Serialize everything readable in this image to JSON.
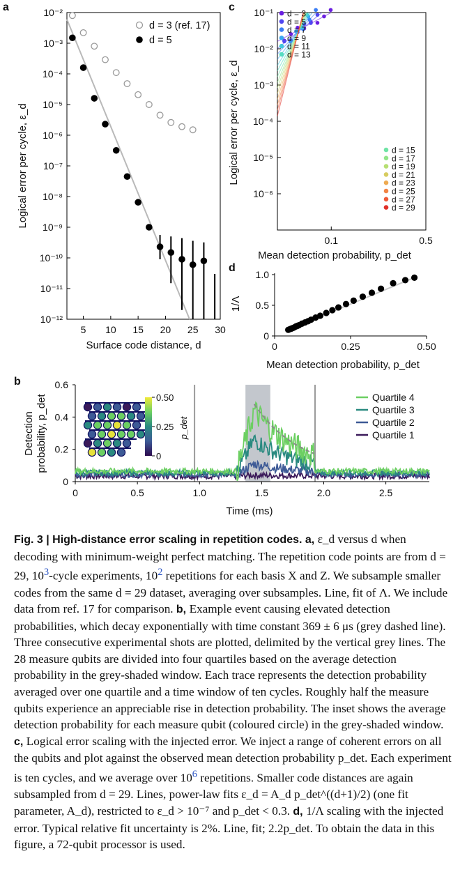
{
  "panels": {
    "a": {
      "letter": "a",
      "ylabel": "Logical error per cycle, ε_d",
      "xlabel": "Surface code distance, d",
      "yticks": [
        "10⁻²",
        "10⁻³",
        "10⁻⁴",
        "10⁻⁵",
        "10⁻⁶",
        "10⁻⁷",
        "10⁻⁸",
        "10⁻⁹",
        "10⁻¹⁰",
        "10⁻¹¹",
        "10⁻¹²"
      ],
      "xticks": [
        "5",
        "10",
        "15",
        "20",
        "25",
        "30"
      ],
      "legend": [
        "d = 3 (ref. 17)",
        "d = 5"
      ]
    },
    "b": {
      "letter": "b",
      "ylabel_line1": "Detection",
      "ylabel_line2": "probability, p_det",
      "xlabel": "Time (ms)",
      "yticks": [
        "0",
        "0.2",
        "0.4",
        "0.6"
      ],
      "xticks": [
        "0",
        "0.5",
        "1.0",
        "1.5",
        "2.0",
        "2.5"
      ],
      "colorbar_ticks": [
        "0.50",
        "0.25",
        "0"
      ],
      "colorbar_label": "p_det",
      "legend": [
        "Quartile 4",
        "Quartile 3",
        "Quartile 2",
        "Quartile 1"
      ]
    },
    "c": {
      "letter": "c",
      "ylabel": "Logical error per cycle, ε_d",
      "xlabel": "Mean detection probability, p_det",
      "yticks": [
        "10⁻¹",
        "10⁻²",
        "10⁻³",
        "10⁻⁴",
        "10⁻⁵",
        "10⁻⁶"
      ],
      "xticks": [
        "0.1",
        "0.5"
      ],
      "legend_left": [
        "d = 3",
        "d = 5",
        "d = 7",
        "d = 9",
        "d = 11",
        "d = 13"
      ],
      "legend_right": [
        "d = 15",
        "d = 17",
        "d = 19",
        "d = 21",
        "d = 23",
        "d = 25",
        "d = 27",
        "d = 29"
      ]
    },
    "d": {
      "letter": "d",
      "ylabel": "1/Λ",
      "xlabel": "Mean detection probability, p_det",
      "yticks": [
        "0",
        "0.5",
        "1.0"
      ],
      "xticks": [
        "0",
        "0.25",
        "0.50"
      ]
    }
  },
  "chart_data": [
    {
      "panel": "a",
      "type": "scatter",
      "log_y": true,
      "xlabel": "Surface code distance, d",
      "ylabel": "Logical error per cycle, ε_d",
      "xlim": [
        2,
        30
      ],
      "ylim": [
        1e-12,
        0.01
      ],
      "series": [
        {
          "name": "d = 3 (ref. 17)",
          "marker": "open",
          "x": [
            3,
            5,
            7,
            9,
            11,
            13,
            15,
            17,
            19,
            21,
            23,
            25
          ],
          "y": [
            0.008,
            0.0022,
            0.0008,
            0.00029,
            0.00011,
            4.8e-05,
            2.1e-05,
            1e-05,
            4.5e-06,
            2.6e-06,
            1.9e-06,
            1.5e-06
          ]
        },
        {
          "name": "d = 5",
          "marker": "filled",
          "x": [
            3,
            5,
            7,
            9,
            11,
            13,
            15,
            17,
            19,
            21,
            23,
            25,
            27,
            29
          ],
          "y": [
            0.0015,
            0.00016,
            1.6e-05,
            2.3e-06,
            3.2e-07,
            4.5e-08,
            6.5e-09,
            1e-09,
            2.3e-10,
            1.5e-10,
            9e-11,
            6e-11,
            8e-11,
            null
          ],
          "yerr_low": [
            null,
            null,
            null,
            null,
            null,
            null,
            null,
            null,
            1.4e-10,
            1.35e-10,
            8.8e-11,
            5.9e-11,
            7.9e-11,
            null
          ],
          "yerr_high": [
            null,
            null,
            null,
            null,
            null,
            null,
            null,
            null,
            3.3e-10,
            3.5e-10,
            3.5e-10,
            3e-10,
            2.4e-10,
            3e-11
          ]
        }
      ],
      "fit_line": {
        "x": [
          2.0,
          24.4
        ],
        "y": [
          0.006,
          1e-12
        ]
      }
    },
    {
      "panel": "b",
      "type": "line",
      "xlabel": "Time (ms)",
      "ylabel": "Detection probability, p_det",
      "xlim": [
        0,
        2.85
      ],
      "ylim": [
        0,
        0.6
      ],
      "shaded_window": [
        1.37,
        1.57
      ],
      "shot_boundaries": [
        0.96,
        1.93
      ],
      "decay_fit": {
        "t0": 1.44,
        "p0": 0.48,
        "tau_ms": 0.369,
        "t_end": 1.92,
        "floor": 0.06
      },
      "series": [
        {
          "name": "Quartile 4",
          "color": "#6ccf62",
          "base": 0.065,
          "peak": 0.44
        },
        {
          "name": "Quartile 3",
          "color": "#2a8a80",
          "base": 0.055,
          "peak": 0.26
        },
        {
          "name": "Quartile 2",
          "color": "#3d5a96",
          "base": 0.045,
          "peak": 0.11
        },
        {
          "name": "Quartile 1",
          "color": "#3b1a5a",
          "base": 0.035,
          "peak": 0.04
        }
      ]
    },
    {
      "panel": "c",
      "type": "scatter",
      "log_x": true,
      "log_y": true,
      "xlabel": "Mean detection probability, p_det",
      "ylabel": "Logical error per cycle, ε_d",
      "xlim": [
        0.04,
        0.5
      ],
      "ylim": [
        1e-07,
        0.1
      ],
      "model": "ε_d = A_d · p^((d+1)/2)",
      "series": [
        {
          "name": "d = 3",
          "color": "#6a1fe0",
          "A": 10.0,
          "pmin": 0.045
        },
        {
          "name": "d = 5",
          "color": "#5046f0",
          "A": 160,
          "pmin": 0.045
        },
        {
          "name": "d = 7",
          "color": "#3a7df5",
          "A": 2800,
          "pmin": 0.05
        },
        {
          "name": "d = 9",
          "color": "#3aa6f0",
          "A": 50000,
          "pmin": 0.055
        },
        {
          "name": "d = 11",
          "color": "#40c8dc",
          "A": 850000.0,
          "pmin": 0.06
        },
        {
          "name": "d = 13",
          "color": "#55dcc0",
          "A": 15000000.0,
          "pmin": 0.07
        },
        {
          "name": "d = 15",
          "color": "#70e4a6",
          "A": 260000000.0,
          "pmin": 0.08
        },
        {
          "name": "d = 17",
          "color": "#92e58a",
          "A": 4500000000.0,
          "pmin": 0.09
        },
        {
          "name": "d = 19",
          "color": "#b6df72",
          "A": 80000000000.0,
          "pmin": 0.1
        },
        {
          "name": "d = 21",
          "color": "#d7cc60",
          "A": 1400000000000.0,
          "pmin": 0.11
        },
        {
          "name": "d = 23",
          "color": "#eeab52",
          "A": 24000000000000.0,
          "pmin": 0.12
        },
        {
          "name": "d = 25",
          "color": "#f38444",
          "A": 420000000000000.0,
          "pmin": 0.13
        },
        {
          "name": "d = 27",
          "color": "#ef5a38",
          "A": 7500000000000000.0,
          "pmin": 0.14
        },
        {
          "name": "d = 29",
          "color": "#e03028",
          "A": 1.3e+17,
          "pmin": 0.15
        }
      ]
    },
    {
      "panel": "d",
      "type": "scatter",
      "xlabel": "Mean detection probability, p_det",
      "ylabel": "1/Λ",
      "xlim": [
        0,
        0.5
      ],
      "ylim": [
        0,
        1.0
      ],
      "x": [
        0.045,
        0.05,
        0.055,
        0.06,
        0.065,
        0.07,
        0.075,
        0.08,
        0.09,
        0.1,
        0.11,
        0.12,
        0.135,
        0.15,
        0.17,
        0.19,
        0.21,
        0.235,
        0.26,
        0.29,
        0.32,
        0.35,
        0.39,
        0.43,
        0.46
      ],
      "y": [
        0.1,
        0.11,
        0.12,
        0.13,
        0.14,
        0.155,
        0.165,
        0.175,
        0.2,
        0.22,
        0.24,
        0.265,
        0.3,
        0.33,
        0.375,
        0.42,
        0.465,
        0.52,
        0.575,
        0.64,
        0.705,
        0.77,
        0.86,
        0.91,
        0.95
      ],
      "fit_line": {
        "slope": 2.2
      }
    }
  ],
  "caption": {
    "title": "Fig. 3 | High-distance error scaling in repetition codes.",
    "body": [
      " a, ",
      "ε_d versus d when decoding with minimum-weight perfect matching. The repetition code points are from d = 29, 10",
      "3",
      "-cycle experiments, 10",
      "2",
      " repetitions for each basis X and Z. We subsample smaller codes from the same d = 29 dataset, averaging over subsamples. Line, fit of Λ. We include data from ref. 17 for comparison. ",
      "b, ",
      "Example event causing elevated detection probabilities, which decay exponentially with time constant 369 ± 6 μs (grey dashed line). Three consecutive experimental shots are plotted, delimited by the vertical grey lines. The 28 measure qubits are divided into four quartiles based on the average detection probability in the grey-shaded window. Each trace represents the detection probability averaged over one quartile and a time window of ten cycles. Roughly half the measure qubits experience an appreciable rise in detection probability. The inset shows the average detection probability for each measure qubit (coloured circle) in the grey-shaded window. ",
      "c, ",
      "Logical error scaling with the injected error. We inject a range of coherent errors on all the qubits and plot against the observed mean detection probability p_det. Each experiment is ten cycles, and we average over 10",
      "6",
      " repetitions. Smaller code distances are again subsampled from d = 29. Lines, power-law fits ε_d = A_d p_det^((d+1)/2) (one fit parameter, A_d), restricted to ε_d > 10⁻⁷ and p_det < 0.3. ",
      "d, ",
      "1/Λ scaling with the injected error. Typical relative fit uncertainty is 2%. Line, fit; 2.2p_det. To obtain the data in this figure, a 72-qubit processor is used."
    ]
  }
}
